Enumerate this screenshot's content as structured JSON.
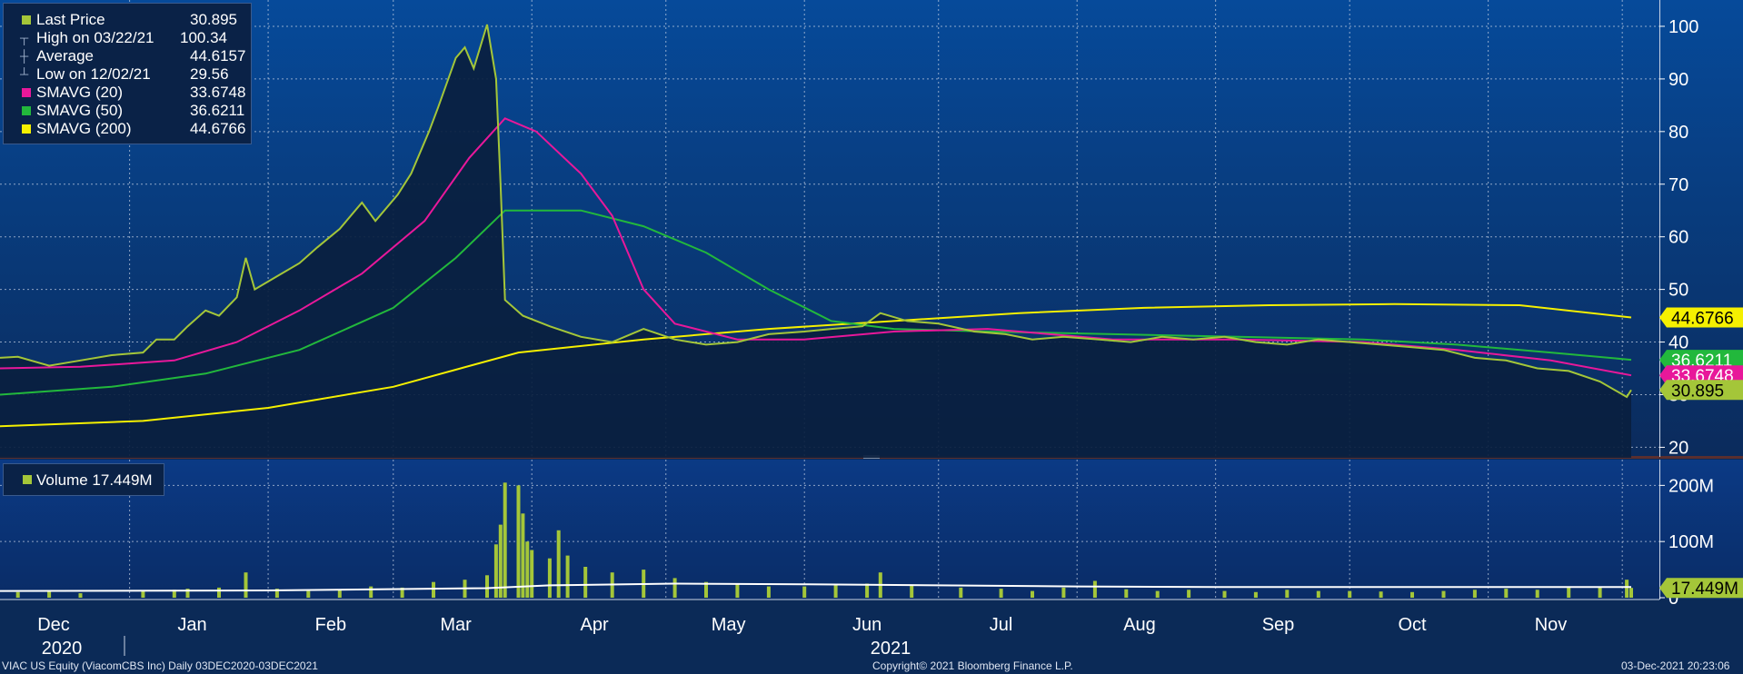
{
  "legend": {
    "rows": [
      {
        "label": "Last Price",
        "value": "30.895",
        "color": "#a4c639"
      },
      {
        "label": "High on 03/22/21",
        "value": "100.34",
        "color": ""
      },
      {
        "label": "Average",
        "value": "44.6157",
        "color": ""
      },
      {
        "label": "Low on 12/02/21",
        "value": "29.56",
        "color": ""
      },
      {
        "label": "SMAVG (20)",
        "value": "33.6748",
        "color": "#e8189a"
      },
      {
        "label": "SMAVG (50)",
        "value": "36.6211",
        "color": "#22b83c"
      },
      {
        "label": "SMAVG (200)",
        "value": "44.6766",
        "color": "#f5f000"
      }
    ]
  },
  "volume_legend": {
    "label": "Volume 17.449M",
    "color": "#a4c639"
  },
  "footer": {
    "left": "VIAC US Equity (ViacomCBS Inc)  Daily 03DEC2020-03DEC2021",
    "center": "Copyright© 2021 Bloomberg Finance L.P.",
    "right": "03-Dec-2021 20:23:06"
  },
  "chart_data": [
    {
      "type": "line",
      "panel": "price",
      "y_axis": {
        "ticks": [
          "20",
          "30",
          "40",
          "50",
          "60",
          "70",
          "80",
          "90",
          "100"
        ],
        "range": [
          18,
          105
        ],
        "side": "right"
      },
      "x_axis": {
        "months": [
          "Dec",
          "Jan",
          "Feb",
          "Mar",
          "Apr",
          "May",
          "Jun",
          "Jul",
          "Aug",
          "Sep",
          "Oct",
          "Nov"
        ],
        "years": [
          "2020",
          "2021"
        ]
      },
      "grid": true,
      "legend_placement": "top-left",
      "axis_labels": {
        "last": "30.895",
        "sma20": "33.6748",
        "sma50": "36.6211",
        "sma200": "44.6766"
      },
      "series": [
        {
          "name": "Last Price",
          "color": "#a4c639",
          "points": [
            [
              "2020-12-03",
              37.0
            ],
            [
              "2020-12-07",
              37.2
            ],
            [
              "2020-12-14",
              35.5
            ],
            [
              "2020-12-21",
              36.5
            ],
            [
              "2020-12-28",
              37.5
            ],
            [
              "2021-01-04",
              38.0
            ],
            [
              "2021-01-07",
              40.5
            ],
            [
              "2021-01-11",
              40.5
            ],
            [
              "2021-01-14",
              43.0
            ],
            [
              "2021-01-18",
              46.0
            ],
            [
              "2021-01-21",
              45.0
            ],
            [
              "2021-01-25",
              48.5
            ],
            [
              "2021-01-27",
              56.0
            ],
            [
              "2021-01-29",
              50.0
            ],
            [
              "2021-02-03",
              52.5
            ],
            [
              "2021-02-08",
              55.0
            ],
            [
              "2021-02-12",
              58.0
            ],
            [
              "2021-02-17",
              61.5
            ],
            [
              "2021-02-22",
              66.5
            ],
            [
              "2021-02-25",
              63.0
            ],
            [
              "2021-03-02",
              68.0
            ],
            [
              "2021-03-05",
              72.0
            ],
            [
              "2021-03-09",
              80.0
            ],
            [
              "2021-03-11",
              84.5
            ],
            [
              "2021-03-15",
              94.0
            ],
            [
              "2021-03-17",
              96.0
            ],
            [
              "2021-03-19",
              92.0
            ],
            [
              "2021-03-22",
              100.34
            ],
            [
              "2021-03-24",
              90.0
            ],
            [
              "2021-03-25",
              70.0
            ],
            [
              "2021-03-26",
              48.0
            ],
            [
              "2021-03-30",
              45.0
            ],
            [
              "2021-04-05",
              43.0
            ],
            [
              "2021-04-12",
              41.0
            ],
            [
              "2021-04-19",
              40.0
            ],
            [
              "2021-04-26",
              42.5
            ],
            [
              "2021-05-03",
              40.5
            ],
            [
              "2021-05-10",
              39.5
            ],
            [
              "2021-05-17",
              40.0
            ],
            [
              "2021-05-24",
              41.5
            ],
            [
              "2021-06-01",
              42.0
            ],
            [
              "2021-06-07",
              42.5
            ],
            [
              "2021-06-14",
              43.0
            ],
            [
              "2021-06-18",
              45.5
            ],
            [
              "2021-06-24",
              44.0
            ],
            [
              "2021-07-01",
              43.5
            ],
            [
              "2021-07-09",
              42.0
            ],
            [
              "2021-07-16",
              41.5
            ],
            [
              "2021-07-22",
              40.5
            ],
            [
              "2021-07-29",
              41.0
            ],
            [
              "2021-08-06",
              40.5
            ],
            [
              "2021-08-13",
              40.0
            ],
            [
              "2021-08-20",
              41.0
            ],
            [
              "2021-08-27",
              40.5
            ],
            [
              "2021-09-03",
              41.0
            ],
            [
              "2021-09-10",
              40.0
            ],
            [
              "2021-09-17",
              39.5
            ],
            [
              "2021-09-24",
              40.5
            ],
            [
              "2021-10-01",
              40.0
            ],
            [
              "2021-10-08",
              39.5
            ],
            [
              "2021-10-15",
              39.0
            ],
            [
              "2021-10-22",
              38.5
            ],
            [
              "2021-10-29",
              37.0
            ],
            [
              "2021-11-05",
              36.5
            ],
            [
              "2021-11-12",
              35.0
            ],
            [
              "2021-11-19",
              34.5
            ],
            [
              "2021-11-26",
              32.5
            ],
            [
              "2021-12-02",
              29.56
            ],
            [
              "2021-12-03",
              30.895
            ]
          ]
        },
        {
          "name": "SMAVG (20)",
          "color": "#e8189a",
          "points": [
            [
              "2020-12-03",
              35.0
            ],
            [
              "2020-12-21",
              35.3
            ],
            [
              "2021-01-11",
              36.5
            ],
            [
              "2021-01-25",
              40.0
            ],
            [
              "2021-02-08",
              46.0
            ],
            [
              "2021-02-22",
              53.0
            ],
            [
              "2021-03-08",
              63.0
            ],
            [
              "2021-03-18",
              75.0
            ],
            [
              "2021-03-26",
              82.5
            ],
            [
              "2021-04-02",
              80.0
            ],
            [
              "2021-04-12",
              72.0
            ],
            [
              "2021-04-19",
              64.0
            ],
            [
              "2021-04-26",
              50.0
            ],
            [
              "2021-05-03",
              43.5
            ],
            [
              "2021-05-17",
              40.5
            ],
            [
              "2021-06-01",
              40.5
            ],
            [
              "2021-06-21",
              42.0
            ],
            [
              "2021-07-12",
              42.5
            ],
            [
              "2021-08-09",
              40.5
            ],
            [
              "2021-09-06",
              40.5
            ],
            [
              "2021-10-04",
              40.0
            ],
            [
              "2021-10-25",
              38.5
            ],
            [
              "2021-11-15",
              36.5
            ],
            [
              "2021-12-03",
              33.6748
            ]
          ]
        },
        {
          "name": "SMAVG (50)",
          "color": "#22b83c",
          "points": [
            [
              "2020-12-03",
              30.0
            ],
            [
              "2020-12-28",
              31.5
            ],
            [
              "2021-01-18",
              34.0
            ],
            [
              "2021-02-08",
              38.5
            ],
            [
              "2021-03-01",
              46.5
            ],
            [
              "2021-03-15",
              56.0
            ],
            [
              "2021-03-26",
              65.0
            ],
            [
              "2021-04-12",
              65.0
            ],
            [
              "2021-04-26",
              62.0
            ],
            [
              "2021-05-10",
              57.0
            ],
            [
              "2021-05-24",
              50.0
            ],
            [
              "2021-06-07",
              44.0
            ],
            [
              "2021-06-21",
              42.5
            ],
            [
              "2021-07-12",
              42.0
            ],
            [
              "2021-08-09",
              41.5
            ],
            [
              "2021-09-06",
              41.0
            ],
            [
              "2021-10-04",
              40.5
            ],
            [
              "2021-10-25",
              39.5
            ],
            [
              "2021-11-15",
              38.0
            ],
            [
              "2021-12-03",
              36.6211
            ]
          ]
        },
        {
          "name": "SMAVG (200)",
          "color": "#f5f000",
          "points": [
            [
              "2020-12-03",
              24.0
            ],
            [
              "2021-01-04",
              25.0
            ],
            [
              "2021-02-01",
              27.5
            ],
            [
              "2021-03-01",
              31.5
            ],
            [
              "2021-03-29",
              38.0
            ],
            [
              "2021-04-26",
              40.5
            ],
            [
              "2021-05-24",
              42.5
            ],
            [
              "2021-06-21",
              44.0
            ],
            [
              "2021-07-19",
              45.5
            ],
            [
              "2021-08-16",
              46.5
            ],
            [
              "2021-09-13",
              47.0
            ],
            [
              "2021-10-11",
              47.2
            ],
            [
              "2021-11-08",
              47.0
            ],
            [
              "2021-12-03",
              44.6766
            ]
          ]
        }
      ]
    },
    {
      "type": "bar",
      "panel": "volume",
      "y_axis": {
        "ticks": [
          "0",
          "100M",
          "200M"
        ],
        "range": [
          0,
          220
        ]
      },
      "last_label": "17.449M",
      "series": [
        {
          "name": "Volume",
          "color": "#a4c639",
          "unit": "M",
          "points": [
            [
              "2020-12-07",
              10
            ],
            [
              "2020-12-14",
              11
            ],
            [
              "2020-12-21",
              8
            ],
            [
              "2021-01-04",
              12
            ],
            [
              "2021-01-11",
              14
            ],
            [
              "2021-01-14",
              16
            ],
            [
              "2021-01-21",
              18
            ],
            [
              "2021-01-27",
              45
            ],
            [
              "2021-02-03",
              16
            ],
            [
              "2021-02-10",
              12
            ],
            [
              "2021-02-17",
              14
            ],
            [
              "2021-02-24",
              20
            ],
            [
              "2021-03-03",
              18
            ],
            [
              "2021-03-10",
              28
            ],
            [
              "2021-03-17",
              32
            ],
            [
              "2021-03-22",
              40
            ],
            [
              "2021-03-24",
              95
            ],
            [
              "2021-03-25",
              130
            ],
            [
              "2021-03-26",
              205
            ],
            [
              "2021-03-29",
              200
            ],
            [
              "2021-03-30",
              150
            ],
            [
              "2021-03-31",
              100
            ],
            [
              "2021-04-01",
              85
            ],
            [
              "2021-04-05",
              70
            ],
            [
              "2021-04-07",
              120
            ],
            [
              "2021-04-09",
              75
            ],
            [
              "2021-04-13",
              55
            ],
            [
              "2021-04-19",
              45
            ],
            [
              "2021-04-26",
              50
            ],
            [
              "2021-05-03",
              35
            ],
            [
              "2021-05-10",
              28
            ],
            [
              "2021-05-17",
              25
            ],
            [
              "2021-05-24",
              20
            ],
            [
              "2021-06-01",
              20
            ],
            [
              "2021-06-08",
              22
            ],
            [
              "2021-06-15",
              25
            ],
            [
              "2021-06-18",
              45
            ],
            [
              "2021-06-25",
              22
            ],
            [
              "2021-07-06",
              18
            ],
            [
              "2021-07-15",
              16
            ],
            [
              "2021-07-22",
              12
            ],
            [
              "2021-07-29",
              18
            ],
            [
              "2021-08-05",
              30
            ],
            [
              "2021-08-12",
              15
            ],
            [
              "2021-08-19",
              12
            ],
            [
              "2021-08-26",
              14
            ],
            [
              "2021-09-03",
              12
            ],
            [
              "2021-09-10",
              10
            ],
            [
              "2021-09-17",
              14
            ],
            [
              "2021-09-24",
              12
            ],
            [
              "2021-10-01",
              12
            ],
            [
              "2021-10-08",
              11
            ],
            [
              "2021-10-15",
              10
            ],
            [
              "2021-10-22",
              12
            ],
            [
              "2021-10-29",
              14
            ],
            [
              "2021-11-05",
              16
            ],
            [
              "2021-11-12",
              14
            ],
            [
              "2021-11-19",
              18
            ],
            [
              "2021-11-26",
              20
            ],
            [
              "2021-12-02",
              32
            ],
            [
              "2021-12-03",
              17.449
            ]
          ]
        },
        {
          "name": "Volume average",
          "color": "#ffffff",
          "points": [
            [
              "2020-12-03",
              12
            ],
            [
              "2021-02-01",
              13
            ],
            [
              "2021-03-22",
              17
            ],
            [
              "2021-04-05",
              22
            ],
            [
              "2021-05-03",
              25
            ],
            [
              "2021-06-01",
              24
            ],
            [
              "2021-07-01",
              22
            ],
            [
              "2021-08-01",
              20
            ],
            [
              "2021-09-01",
              19
            ],
            [
              "2021-10-01",
              19
            ],
            [
              "2021-11-01",
              19
            ],
            [
              "2021-12-03",
              19
            ]
          ]
        }
      ]
    }
  ]
}
